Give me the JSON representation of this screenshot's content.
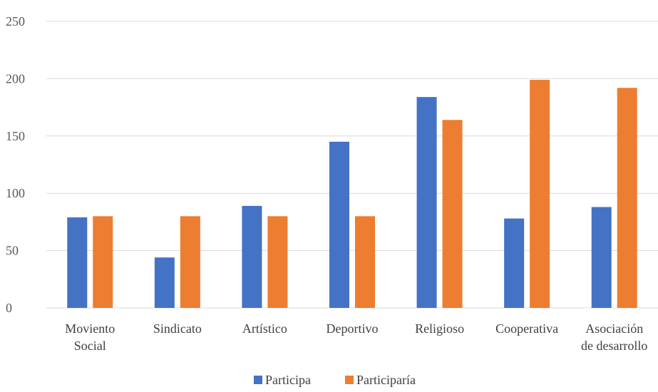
{
  "chart_data": {
    "type": "bar",
    "title": "",
    "xlabel": "",
    "ylabel": "",
    "ylim": [
      0,
      250
    ],
    "yticks": [
      0,
      50,
      100,
      150,
      200,
      250
    ],
    "grid": true,
    "legend_position": "bottom",
    "categories": [
      [
        "Moviento",
        "Social"
      ],
      [
        "Sindicato"
      ],
      [
        "Artístico"
      ],
      [
        "Deportivo"
      ],
      [
        "Religioso"
      ],
      [
        "Cooperativa"
      ],
      [
        "Asociación",
        "de desarrollo"
      ]
    ],
    "series": [
      {
        "name": "Participa",
        "color": "#4472c4",
        "values": [
          79,
          44,
          89,
          145,
          184,
          78,
          88
        ]
      },
      {
        "name": "Participaría",
        "color": "#ed7d31",
        "values": [
          80,
          80,
          80,
          80,
          164,
          199,
          192
        ]
      }
    ]
  }
}
